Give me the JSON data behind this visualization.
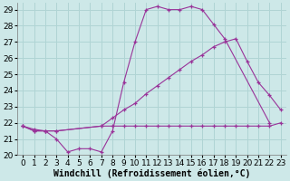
{
  "background_color": "#cde8e8",
  "grid_color": "#b0d4d4",
  "line_color": "#993399",
  "xlim": [
    -0.5,
    23.5
  ],
  "ylim": [
    20,
    29.4
  ],
  "xlabel": "Windchill (Refroidissement éolien,°C)",
  "xticks": [
    0,
    1,
    2,
    3,
    4,
    5,
    6,
    7,
    8,
    9,
    10,
    11,
    12,
    13,
    14,
    15,
    16,
    17,
    18,
    19,
    20,
    21,
    22,
    23
  ],
  "yticks": [
    20,
    21,
    22,
    23,
    24,
    25,
    26,
    27,
    28,
    29
  ],
  "tick_fontsize": 6.5,
  "xlabel_fontsize": 7.0,
  "line1_x": [
    0,
    1,
    2,
    3,
    4,
    5,
    6,
    7,
    8,
    9,
    10,
    11,
    12,
    13,
    14,
    15,
    16,
    17,
    18,
    22
  ],
  "line1_y": [
    21.8,
    21.6,
    21.5,
    21.0,
    20.2,
    20.4,
    20.4,
    20.2,
    21.5,
    24.5,
    27.0,
    29.0,
    29.2,
    29.0,
    29.0,
    29.2,
    29.0,
    28.1,
    27.2,
    22.0
  ],
  "line2_x": [
    0,
    1,
    2,
    3,
    7,
    8,
    9,
    10,
    11,
    12,
    13,
    14,
    15,
    16,
    17,
    18,
    19,
    20,
    21,
    22,
    23
  ],
  "line2_y": [
    21.8,
    21.5,
    21.5,
    21.5,
    21.8,
    22.3,
    22.8,
    23.2,
    23.8,
    24.3,
    24.8,
    25.3,
    25.8,
    26.2,
    26.7,
    27.0,
    27.2,
    25.8,
    24.5,
    23.7,
    22.8
  ],
  "line3_x": [
    0,
    1,
    2,
    3,
    7,
    8,
    9,
    10,
    11,
    12,
    13,
    14,
    15,
    16,
    17,
    18,
    19,
    20,
    21,
    22,
    23
  ],
  "line3_y": [
    21.8,
    21.5,
    21.5,
    21.5,
    21.8,
    21.8,
    21.8,
    21.8,
    21.8,
    21.8,
    21.8,
    21.8,
    21.8,
    21.8,
    21.8,
    21.8,
    21.8,
    21.8,
    21.8,
    21.8,
    22.0
  ]
}
